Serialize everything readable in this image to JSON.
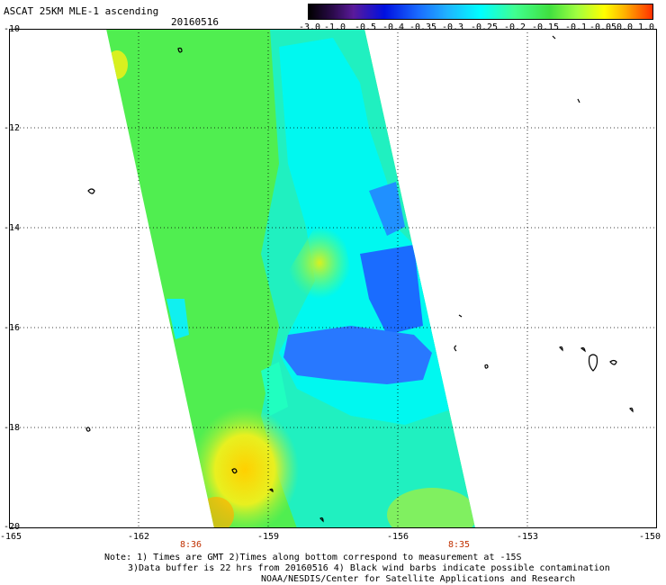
{
  "header": {
    "title": "ASCAT 25KM MLE-1 ascending",
    "date": "20160516"
  },
  "colorbar": {
    "labels": [
      "-3.0",
      "-1.0",
      "-0.5",
      "-0.4",
      "-0.35",
      "-0.3",
      "-0.25",
      "-0.2",
      "-0.15",
      "-0.1",
      "-0.05",
      "0.0",
      "1.0"
    ]
  },
  "axes": {
    "lat_labels": [
      "-10",
      "-12",
      "-14",
      "-16",
      "-18",
      "-20"
    ],
    "lon_labels": [
      "-165",
      "-162",
      "-159",
      "-156",
      "-153",
      "-150"
    ]
  },
  "times": {
    "left": "8:36",
    "right": "8:35"
  },
  "notes": {
    "line1": "Note: 1) Times are GMT 2)Times along bottom correspond to measurement at -15S",
    "line2": "3)Data buffer is 22 hrs from 20160516 4) Black wind barbs indicate possible contamination",
    "line3": "NOAA/NESDIS/Center for Satellite Applications and Research"
  },
  "colors": {
    "grid": "#000000",
    "time_label": "#c03000"
  }
}
